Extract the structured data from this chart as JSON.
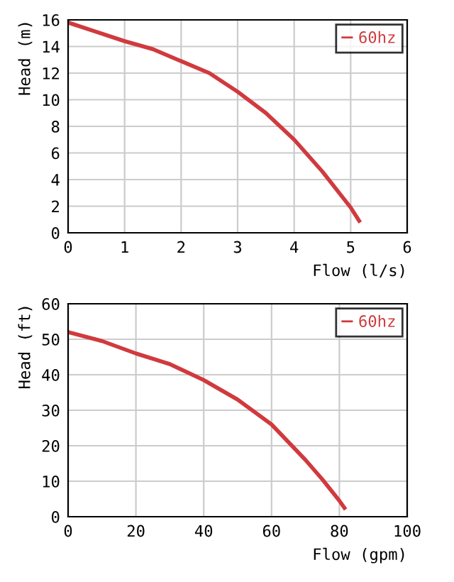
{
  "chart_data": [
    {
      "type": "line",
      "xlabel": "Flow (l/s)",
      "ylabel": "Head (m)",
      "xlim": [
        0,
        6
      ],
      "ylim": [
        0,
        16
      ],
      "xticks": [
        0,
        1,
        2,
        3,
        4,
        5,
        6
      ],
      "yticks": [
        0,
        2,
        4,
        6,
        8,
        10,
        12,
        14,
        16
      ],
      "grid": true,
      "legend": "top right",
      "marker": "none",
      "line_style": "solid",
      "series": [
        {
          "name": "60hz",
          "color": "#d03a3e",
          "x": [
            0,
            0.5,
            1,
            1.5,
            2,
            2.5,
            3,
            3.5,
            4,
            4.5,
            5,
            5.15
          ],
          "values": [
            15.8,
            15.1,
            14.4,
            13.8,
            12.9,
            12.0,
            10.6,
            9.0,
            7.0,
            4.6,
            1.9,
            0.9
          ]
        }
      ]
    },
    {
      "type": "line",
      "xlabel": "Flow (gpm)",
      "ylabel": "Head (ft)",
      "xlim": [
        0,
        100
      ],
      "ylim": [
        0,
        60
      ],
      "xticks": [
        0,
        20,
        40,
        60,
        80,
        100
      ],
      "yticks": [
        0,
        10,
        20,
        30,
        40,
        50,
        60
      ],
      "grid": true,
      "legend": "top right",
      "marker": "none",
      "line_style": "solid",
      "series": [
        {
          "name": "60hz",
          "color": "#d03a3e",
          "x": [
            0,
            10,
            20,
            30,
            40,
            50,
            60,
            70,
            75,
            80,
            81.5
          ],
          "values": [
            52,
            49.5,
            46,
            43,
            38.5,
            33,
            26,
            16,
            10.5,
            4.5,
            2.5
          ]
        }
      ]
    }
  ]
}
